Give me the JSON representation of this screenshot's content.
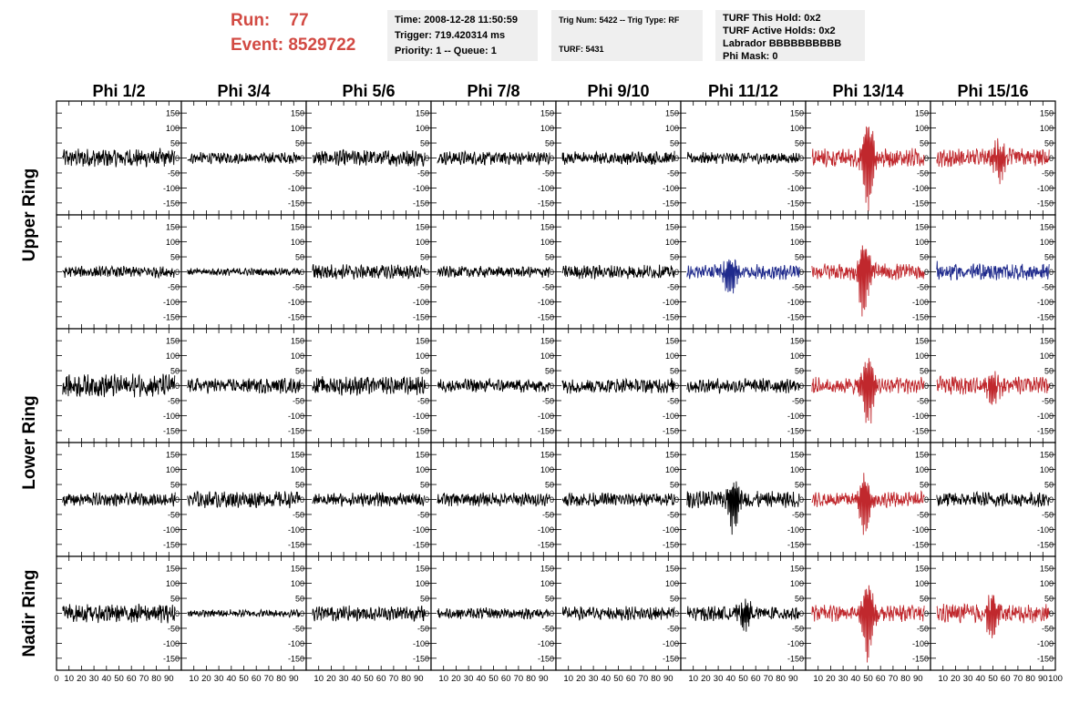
{
  "header": {
    "run_label": "Run:",
    "run_value": "77",
    "event_label": "Event:",
    "event_value": "8529722",
    "run_color": "#d24a43",
    "time_line": "Time: 2008-12-28 11:50:59",
    "trigger_line": "Trigger: 719.420314 ms",
    "priority_line": "Priority: 1 -- Queue: 1",
    "trig_line": "Trig Num: 5422 -- Trig Type: RF",
    "turf_line": "TURF: 5431",
    "turf_hold_line": "TURF This Hold: 0x2",
    "turf_active_line": "TURF Active Holds: 0x2",
    "labrador_line": "Labrador BBBBBBBBBB",
    "phi_mask_line": "Phi Mask: 0"
  },
  "colors": {
    "black": "#000000",
    "red": "#c0282d",
    "blue": "#1f2a8c",
    "info_bg": "#efefef"
  },
  "chart_data": {
    "type": "line",
    "column_titles": [
      "Phi 1/2",
      "Phi 3/4",
      "Phi 5/6",
      "Phi 7/8",
      "Phi 9/10",
      "Phi 11/12",
      "Phi 13/14",
      "Phi 15/16"
    ],
    "ring_labels": [
      "Upper Ring",
      "Lower Ring",
      "Nadir Ring"
    ],
    "ylim": [
      -190,
      190
    ],
    "xlim": [
      0,
      100
    ],
    "y_ticks": [
      -150,
      -100,
      -50,
      0,
      50,
      100,
      150
    ],
    "y_tick_labels": [
      "-150",
      "-100",
      "-50",
      "0",
      "50",
      "100",
      "150"
    ],
    "x_ticks": [
      0,
      10,
      20,
      30,
      40,
      50,
      60,
      70,
      80,
      90,
      100
    ],
    "x_tick_labels": [
      "0",
      "10",
      "20",
      "30",
      "40",
      "50",
      "60",
      "70",
      "80",
      "90",
      "100"
    ],
    "panel_colors": [
      [
        "black",
        "black",
        "black",
        "black",
        "black",
        "black",
        "red",
        "red"
      ],
      [
        "black",
        "black",
        "black",
        "black",
        "black",
        "blue",
        "red",
        "blue"
      ],
      [
        "black",
        "black",
        "black",
        "black",
        "black",
        "black",
        "red",
        "red"
      ],
      [
        "black",
        "black",
        "black",
        "black",
        "black",
        "black",
        "red",
        "black"
      ],
      [
        "black",
        "black",
        "black",
        "black",
        "black",
        "black",
        "red",
        "red"
      ]
    ],
    "panel_noise_amplitude": [
      [
        25,
        15,
        22,
        18,
        18,
        15,
        25,
        25
      ],
      [
        15,
        10,
        20,
        15,
        18,
        20,
        22,
        22
      ],
      [
        30,
        20,
        25,
        18,
        20,
        20,
        22,
        25
      ],
      [
        18,
        22,
        18,
        18,
        18,
        22,
        20,
        20
      ],
      [
        25,
        10,
        20,
        15,
        18,
        20,
        22,
        25
      ]
    ],
    "panel_pulse_peak": [
      [
        0,
        0,
        0,
        0,
        0,
        0,
        165,
        75
      ],
      [
        0,
        0,
        0,
        0,
        0,
        80,
        150,
        55
      ],
      [
        0,
        0,
        0,
        0,
        0,
        0,
        140,
        65
      ],
      [
        0,
        0,
        0,
        0,
        0,
        100,
        120,
        0
      ],
      [
        0,
        0,
        0,
        0,
        0,
        60,
        165,
        90
      ]
    ],
    "panel_pulse_center": [
      [
        0,
        0,
        0,
        0,
        0,
        0,
        50,
        55
      ],
      [
        0,
        0,
        0,
        0,
        0,
        40,
        47,
        0
      ],
      [
        0,
        0,
        0,
        0,
        0,
        0,
        50,
        50
      ],
      [
        0,
        0,
        0,
        0,
        0,
        42,
        47,
        0
      ],
      [
        0,
        0,
        0,
        0,
        0,
        52,
        50,
        50
      ]
    ]
  }
}
